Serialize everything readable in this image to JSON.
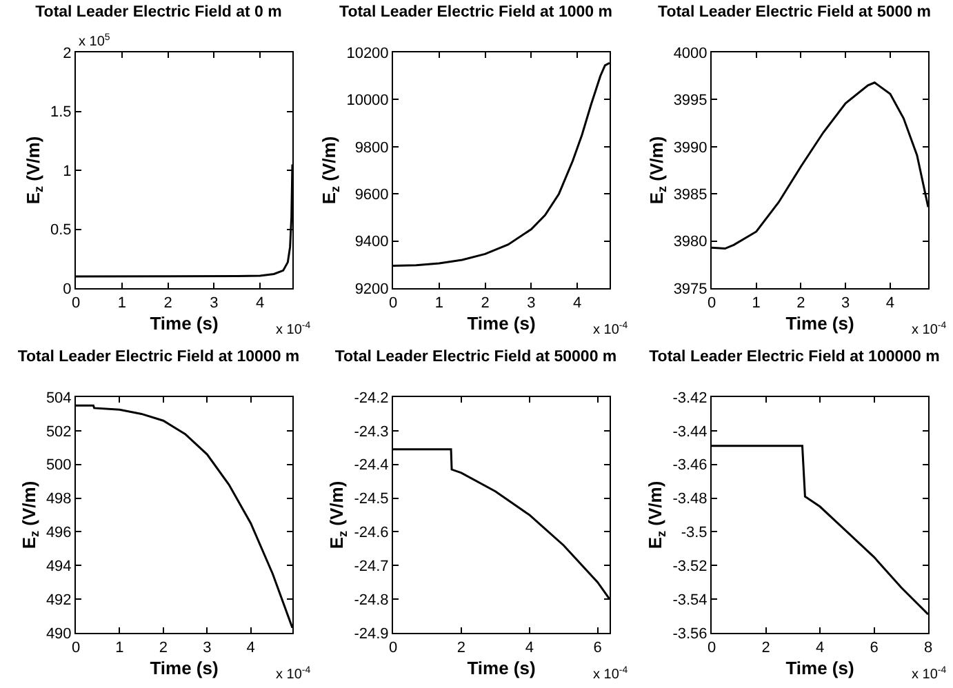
{
  "chart_data": [
    {
      "type": "line",
      "title": "Total Leader Electric Field at 0 m",
      "xlabel": "Time (s)",
      "ylabel": "E$_{z}$ (V/m)",
      "annotations": [
        "x 10$^{5}$",
        "x 10$^{-4}$"
      ],
      "xlim": [
        0,
        4.7
      ],
      "xticks": [
        0,
        1,
        2,
        3,
        4
      ],
      "ylim": [
        0,
        2
      ],
      "yticks": [
        0,
        0.5,
        1,
        1.5,
        2
      ],
      "grid": false,
      "x": [
        0,
        3.5,
        4.0,
        4.3,
        4.5,
        4.6,
        4.65,
        4.68,
        4.7
      ],
      "series": [
        {
          "color": "#000000",
          "values": [
            0.1,
            0.102,
            0.105,
            0.12,
            0.15,
            0.22,
            0.35,
            0.6,
            1.05
          ]
        }
      ]
    },
    {
      "type": "line",
      "title": "Total Leader Electric Field at 1000 m",
      "xlabel": "Time (s)",
      "ylabel": "E$_{z}$ (V/m)",
      "annotations": [
        "x 10$^{-4}$"
      ],
      "xlim": [
        0,
        4.7
      ],
      "xticks": [
        0,
        1,
        2,
        3,
        4
      ],
      "ylim": [
        9200,
        10200
      ],
      "yticks": [
        9200,
        9400,
        9600,
        9800,
        10000,
        10200
      ],
      "grid": false,
      "x": [
        0,
        0.5,
        1,
        1.5,
        2,
        2.5,
        3,
        3.3,
        3.6,
        3.9,
        4.1,
        4.3,
        4.5,
        4.6,
        4.7
      ],
      "series": [
        {
          "color": "#000000",
          "values": [
            9295,
            9297,
            9305,
            9320,
            9345,
            9385,
            9450,
            9510,
            9600,
            9740,
            9850,
            9980,
            10100,
            10145,
            10155
          ]
        }
      ]
    },
    {
      "type": "line",
      "title": "Total Leader Electric Field at 5000 m",
      "xlabel": "Time (s)",
      "ylabel": "E$_{z}$ (V/m)",
      "annotations": [
        "x 10$^{-4}$"
      ],
      "xlim": [
        0,
        4.85
      ],
      "xticks": [
        0,
        1,
        2,
        3,
        4
      ],
      "ylim": [
        3975,
        4000
      ],
      "yticks": [
        3975,
        3980,
        3985,
        3990,
        3995,
        4000
      ],
      "grid": false,
      "x": [
        0,
        0.3,
        0.5,
        1,
        1.5,
        2,
        2.5,
        3,
        3.5,
        3.65,
        4,
        4.3,
        4.6,
        4.85
      ],
      "series": [
        {
          "color": "#000000",
          "values": [
            3979.3,
            3979.2,
            3979.6,
            3981,
            3984.1,
            3987.9,
            3991.5,
            3994.6,
            3996.5,
            3996.8,
            3995.6,
            3993,
            3989.1,
            3983.6
          ]
        }
      ]
    },
    {
      "type": "line",
      "title": "Total Leader Electric Field at 10000 m",
      "xlabel": "Time (s)",
      "ylabel": "E$_{z}$ (V/m)",
      "annotations": [
        "x 10$^{-4}$"
      ],
      "xlim": [
        0,
        4.95
      ],
      "xticks": [
        0,
        1,
        2,
        3,
        4
      ],
      "ylim": [
        490,
        504
      ],
      "yticks": [
        490,
        492,
        494,
        496,
        498,
        500,
        502,
        504
      ],
      "grid": false,
      "x": [
        0,
        0.4,
        0.42,
        1,
        1.5,
        2,
        2.5,
        3,
        3.5,
        4,
        4.5,
        4.95
      ],
      "series": [
        {
          "color": "#000000",
          "values": [
            503.5,
            503.5,
            503.35,
            503.25,
            503,
            502.6,
            501.8,
            500.6,
            498.8,
            496.5,
            493.5,
            490.3
          ]
        }
      ]
    },
    {
      "type": "line",
      "title": "Total Leader Electric Field at 50000 m",
      "xlabel": "Time (s)",
      "ylabel": "E$_{z}$ (V/m)",
      "annotations": [
        "x 10$^{-4}$"
      ],
      "xlim": [
        0,
        6.35
      ],
      "xticks": [
        0,
        2,
        4,
        6
      ],
      "ylim": [
        -24.9,
        -24.2
      ],
      "yticks": [
        -24.9,
        -24.8,
        -24.7,
        -24.6,
        -24.5,
        -24.4,
        -24.3,
        -24.2
      ],
      "grid": false,
      "x": [
        0,
        1.7,
        1.72,
        2,
        3,
        4,
        5,
        6,
        6.35
      ],
      "series": [
        {
          "color": "#000000",
          "values": [
            -24.355,
            -24.355,
            -24.415,
            -24.425,
            -24.48,
            -24.55,
            -24.64,
            -24.75,
            -24.8
          ]
        }
      ]
    },
    {
      "type": "line",
      "title": "Total Leader Electric Field at 100000 m",
      "xlabel": "Time (s)",
      "ylabel": "E$_{z}$ (V/m)",
      "annotations": [
        "x 10$^{-4}$"
      ],
      "xlim": [
        0,
        8
      ],
      "xticks": [
        0,
        2,
        4,
        6,
        8
      ],
      "ylim": [
        -3.56,
        -3.42
      ],
      "yticks": [
        -3.56,
        -3.54,
        -3.52,
        -3.5,
        -3.48,
        -3.46,
        -3.44,
        -3.42
      ],
      "grid": false,
      "x": [
        0,
        3.35,
        3.45,
        4,
        5,
        6,
        7,
        8
      ],
      "series": [
        {
          "color": "#000000",
          "values": [
            -3.449,
            -3.449,
            -3.479,
            -3.485,
            -3.5,
            -3.515,
            -3.533,
            -3.549
          ]
        }
      ]
    }
  ]
}
